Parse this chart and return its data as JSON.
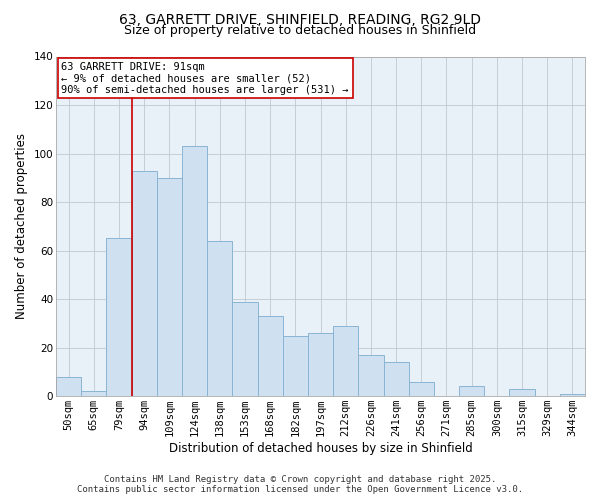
{
  "title": "63, GARRETT DRIVE, SHINFIELD, READING, RG2 9LD",
  "subtitle": "Size of property relative to detached houses in Shinfield",
  "xlabel": "Distribution of detached houses by size in Shinfield",
  "ylabel": "Number of detached properties",
  "bar_labels": [
    "50sqm",
    "65sqm",
    "79sqm",
    "94sqm",
    "109sqm",
    "124sqm",
    "138sqm",
    "153sqm",
    "168sqm",
    "182sqm",
    "197sqm",
    "212sqm",
    "226sqm",
    "241sqm",
    "256sqm",
    "271sqm",
    "285sqm",
    "300sqm",
    "315sqm",
    "329sqm",
    "344sqm"
  ],
  "bar_values": [
    8,
    2,
    65,
    93,
    90,
    103,
    64,
    39,
    33,
    25,
    26,
    29,
    17,
    14,
    6,
    0,
    4,
    0,
    3,
    0,
    1
  ],
  "bar_color": "#cfe0f0",
  "bar_edge_color": "#8ab4d4",
  "vline_x_idx": 3,
  "vline_color": "#cc0000",
  "ylim": [
    0,
    140
  ],
  "yticks": [
    0,
    20,
    40,
    60,
    80,
    100,
    120,
    140
  ],
  "annotation_title": "63 GARRETT DRIVE: 91sqm",
  "annotation_line1": "← 9% of detached houses are smaller (52)",
  "annotation_line2": "90% of semi-detached houses are larger (531) →",
  "annotation_box_color": "#ffffff",
  "annotation_box_edge": "#cc0000",
  "plot_bg_color": "#e8f0f8",
  "footer_line1": "Contains HM Land Registry data © Crown copyright and database right 2025.",
  "footer_line2": "Contains public sector information licensed under the Open Government Licence v3.0.",
  "title_fontsize": 10,
  "subtitle_fontsize": 9,
  "axis_label_fontsize": 8.5,
  "tick_fontsize": 7.5,
  "annotation_fontsize": 7.5,
  "footer_fontsize": 6.5
}
